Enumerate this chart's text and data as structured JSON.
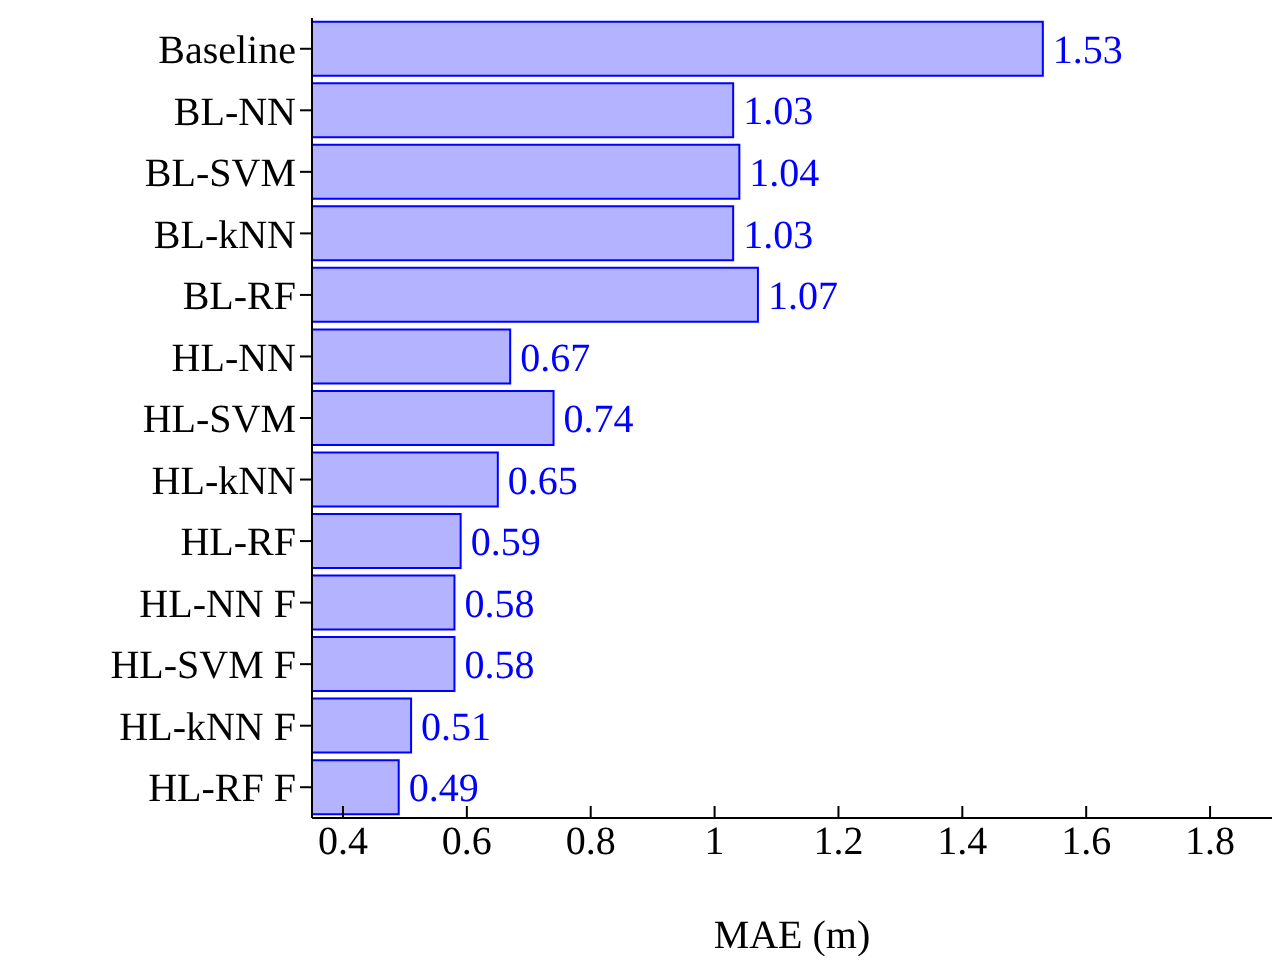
{
  "chart_data": {
    "type": "bar",
    "orientation": "horizontal",
    "xlabel": "MAE (m)",
    "categories": [
      "Baseline",
      "BL-NN",
      "BL-SVM",
      "BL-kNN",
      "BL-RF",
      "HL-NN",
      "HL-SVM",
      "HL-kNN",
      "HL-RF",
      "HL-NN F",
      "HL-SVM F",
      "HL-kNN F",
      "HL-RF F"
    ],
    "values": [
      1.53,
      1.03,
      1.04,
      1.03,
      1.07,
      0.67,
      0.74,
      0.65,
      0.59,
      0.58,
      0.58,
      0.51,
      0.49
    ],
    "color": "#b3b3ff",
    "data_labels": true,
    "xlim": [
      0.35,
      1.9
    ],
    "xticks": [
      0.4,
      0.6,
      0.8,
      1,
      1.2,
      1.4,
      1.6,
      1.8
    ],
    "grid": false,
    "legend": false
  }
}
